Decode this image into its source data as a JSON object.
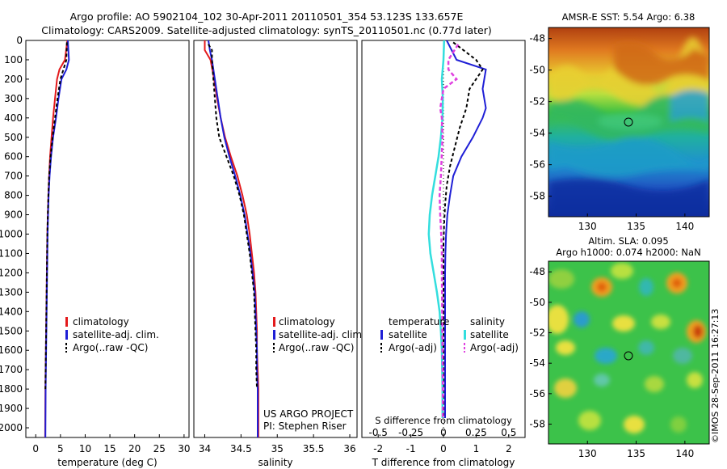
{
  "header": {
    "line1": "Argo profile: AO 5902104_102 30-Apr-2011 20110501_354 53.123S 133.657E",
    "line2": "Climatology: CARS2009. Satellite-adjusted climatology: synTS_20110501.nc (0.77d later)"
  },
  "depth_ticks": [
    "0",
    "100",
    "200",
    "300",
    "400",
    "500",
    "600",
    "700",
    "800",
    "900",
    "1000",
    "1100",
    "1200",
    "1300",
    "1400",
    "1500",
    "1600",
    "1700",
    "1800",
    "1900",
    "2000"
  ],
  "colors": {
    "clim": "#e31a1c",
    "sat": "#1f1fd6",
    "argo": "#000000",
    "sat_s": "#33dede",
    "argo_s": "#e040e0"
  },
  "panel1": {
    "xlabel": "temperature (deg C)",
    "xticks": [
      "0",
      "5",
      "10",
      "15",
      "20",
      "25",
      "30"
    ],
    "legend": [
      "climatology",
      "satellite-adj. clim.",
      "Argo(..raw -QC)"
    ]
  },
  "panel2": {
    "xlabel": "salinity",
    "xticks": [
      "34",
      "34.5",
      "35",
      "35.5",
      "36"
    ],
    "legend": [
      "climatology",
      "satellite-adj. clim.",
      "Argo(..raw -QC)"
    ],
    "credit1": "US ARGO PROJECT",
    "credit2": "PI: Stephen Riser"
  },
  "panel3": {
    "xlabel": "T difference from climatology",
    "top_label": "S difference from climatology",
    "xticks_t": [
      "-2",
      "-1",
      "0",
      "1",
      "2"
    ],
    "xticks_s": [
      "-0.5",
      "-0.25",
      "0",
      "0.25",
      "0.5"
    ],
    "legend_t_title": "temperature",
    "legend_t": [
      "satellite",
      "Argo(-adj)"
    ],
    "legend_s_title": "salinity",
    "legend_s": [
      "satellite",
      "Argo(-adj)"
    ]
  },
  "map1": {
    "title": "AMSR-E SST: 5.54 Argo: 6.38",
    "yticks": [
      "-48",
      "-50",
      "-52",
      "-54",
      "-56",
      "-58"
    ],
    "xticks": [
      "130",
      "135",
      "140"
    ]
  },
  "map2": {
    "title1": "Altim. SLA: 0.095",
    "title2": "Argo h1000: 0.074 h2000: NaN",
    "yticks": [
      "-48",
      "-50",
      "-52",
      "-54",
      "-56",
      "-58"
    ],
    "xticks": [
      "130",
      "135",
      "140"
    ]
  },
  "watermark": "©IMOS 28-Sep-2011 16:27:13",
  "chart_data": [
    {
      "type": "line",
      "title": "",
      "xlabel": "temperature (deg C)",
      "ylabel": "",
      "xlim": [
        -2,
        31
      ],
      "ylim": [
        2050,
        0
      ],
      "series": [
        {
          "name": "climatology",
          "x": [
            6.4,
            5.9,
            4.8,
            4.3,
            3.9,
            3.5,
            3.2,
            2.9,
            2.7,
            2.55,
            2.45,
            2.35,
            2.3,
            2.25,
            2.2,
            2.15,
            2.1,
            2.05,
            2.0,
            1.95,
            1.9
          ],
          "y": [
            0,
            100,
            150,
            200,
            300,
            400,
            500,
            600,
            700,
            800,
            900,
            1000,
            1100,
            1200,
            1300,
            1400,
            1500,
            1600,
            1700,
            1800,
            2050
          ]
        },
        {
          "name": "satellite-adj. clim.",
          "x": [
            6.5,
            6.7,
            6.2,
            5.2,
            4.6,
            4.1,
            3.5,
            3.1,
            2.8,
            2.6,
            2.5,
            2.4,
            2.35,
            2.3,
            2.25,
            2.2,
            2.15,
            2.1,
            2.05,
            2.0,
            1.95
          ],
          "y": [
            0,
            100,
            150,
            200,
            300,
            400,
            500,
            600,
            700,
            800,
            900,
            1000,
            1100,
            1200,
            1300,
            1400,
            1500,
            1600,
            1700,
            1800,
            2050
          ]
        },
        {
          "name": "Argo(..raw -QC)",
          "x": [
            6.3,
            6.2,
            5.6,
            5.0,
            4.4,
            3.9,
            3.4,
            3.0,
            2.7,
            2.55,
            2.45,
            2.35,
            2.3,
            2.25,
            2.2,
            2.15,
            2.1,
            2.05,
            2.0,
            1.95
          ],
          "y": [
            10,
            100,
            150,
            200,
            300,
            400,
            500,
            600,
            700,
            800,
            900,
            1000,
            1100,
            1200,
            1300,
            1400,
            1500,
            1600,
            1700,
            1800
          ]
        }
      ]
    },
    {
      "type": "line",
      "title": "",
      "xlabel": "salinity",
      "ylabel": "",
      "xlim": [
        33.85,
        36.1
      ],
      "ylim": [
        2050,
        0
      ],
      "series": [
        {
          "name": "climatology",
          "x": [
            34.0,
            34.0,
            34.08,
            34.13,
            34.17,
            34.22,
            34.28,
            34.36,
            34.45,
            34.52,
            34.58,
            34.62,
            34.65,
            34.68,
            34.7,
            34.71,
            34.72,
            34.72,
            34.73,
            34.74,
            34.74,
            34.74
          ],
          "y": [
            0,
            50,
            100,
            200,
            300,
            400,
            500,
            600,
            700,
            800,
            900,
            1000,
            1100,
            1200,
            1300,
            1400,
            1500,
            1600,
            1700,
            1800,
            1900,
            2050
          ]
        },
        {
          "name": "satellite-adj. clim.",
          "x": [
            34.05,
            34.07,
            34.1,
            34.14,
            34.18,
            34.22,
            34.27,
            34.34,
            34.42,
            34.49,
            34.55,
            34.59,
            34.63,
            34.66,
            34.69,
            34.7,
            34.71,
            34.72,
            34.72,
            34.73,
            34.73,
            34.73
          ],
          "y": [
            0,
            50,
            100,
            200,
            300,
            400,
            500,
            600,
            700,
            800,
            900,
            1000,
            1100,
            1200,
            1300,
            1400,
            1500,
            1600,
            1700,
            1800,
            1900,
            2050
          ]
        },
        {
          "name": "Argo(..raw -QC)",
          "x": [
            34.05,
            34.1,
            34.1,
            34.12,
            34.14,
            34.16,
            34.2,
            34.3,
            34.4,
            34.48,
            34.54,
            34.58,
            34.62,
            34.65,
            34.68,
            34.69,
            34.7,
            34.71,
            34.71,
            34.72
          ],
          "y": [
            20,
            50,
            100,
            200,
            300,
            400,
            500,
            600,
            700,
            800,
            900,
            1000,
            1100,
            1200,
            1300,
            1400,
            1500,
            1600,
            1700,
            1800
          ]
        }
      ]
    },
    {
      "type": "line",
      "title": "",
      "xlabel": "T difference from climatology",
      "ylabel": "",
      "xlim": [
        -2.5,
        2.5
      ],
      "ylim": [
        2050,
        0
      ],
      "series": [
        {
          "name": "temperature satellite",
          "x": [
            0.1,
            0.4,
            1.3,
            1.2,
            1.3,
            1.2,
            0.9,
            0.55,
            0.3,
            0.2,
            0.12,
            0.08,
            0.06,
            0.05,
            0.05,
            0.05,
            0.05,
            0.05,
            0.05,
            0.05
          ],
          "y": [
            0,
            100,
            150,
            250,
            350,
            400,
            500,
            600,
            700,
            800,
            900,
            1000,
            1100,
            1200,
            1300,
            1400,
            1500,
            1600,
            1800,
            1950
          ]
        },
        {
          "name": "temperature Argo(-adj)",
          "x": [
            0.3,
            1.0,
            1.2,
            0.8,
            0.7,
            0.5,
            0.35,
            0.2,
            0.1,
            0.05,
            0.02,
            0.0,
            0.0,
            0.0,
            0.0,
            0.0,
            0.0,
            0.0,
            0.0
          ],
          "y": [
            10,
            100,
            150,
            250,
            350,
            450,
            550,
            650,
            750,
            850,
            950,
            1050,
            1150,
            1250,
            1350,
            1500,
            1650,
            1800,
            1950
          ]
        },
        {
          "name": "salinity satellite",
          "x": [
            0.02,
            0.0,
            -0.05,
            -0.02,
            -0.03,
            -0.08,
            -0.15,
            -0.25,
            -0.35,
            -0.42,
            -0.45,
            -0.4,
            -0.3,
            -0.2,
            -0.12,
            -0.08,
            -0.05,
            -0.04,
            -0.03,
            -0.03
          ],
          "y": [
            0,
            100,
            200,
            300,
            400,
            500,
            600,
            700,
            800,
            900,
            1000,
            1100,
            1200,
            1300,
            1400,
            1500,
            1600,
            1700,
            1800,
            1950
          ]
        },
        {
          "name": "salinity Argo(-adj)",
          "x": [
            0.45,
            0.15,
            0.15,
            0.4,
            0.0,
            -0.1,
            -0.05,
            -0.03,
            -0.08,
            -0.12,
            -0.1,
            -0.07,
            -0.05,
            -0.05,
            -0.04,
            -0.03,
            -0.02,
            -0.02
          ],
          "y": [
            20,
            100,
            150,
            200,
            250,
            350,
            400,
            500,
            700,
            800,
            900,
            1000,
            1100,
            1200,
            1400,
            1600,
            1800,
            1950
          ]
        }
      ]
    },
    {
      "type": "heatmap",
      "title": "AMSR-E SST: 5.54 Argo: 6.38",
      "xlim": [
        126,
        142.5
      ],
      "ylim": [
        -59.3,
        -47.3
      ],
      "marker": {
        "lon": 133.657,
        "lat": -53.123
      }
    },
    {
      "type": "heatmap",
      "title": "Altim. SLA: 0.095 / Argo h1000: 0.074 h2000: NaN",
      "xlim": [
        126,
        142.5
      ],
      "ylim": [
        -59.3,
        -47.3
      ],
      "marker": {
        "lon": 133.657,
        "lat": -53.123
      }
    }
  ]
}
